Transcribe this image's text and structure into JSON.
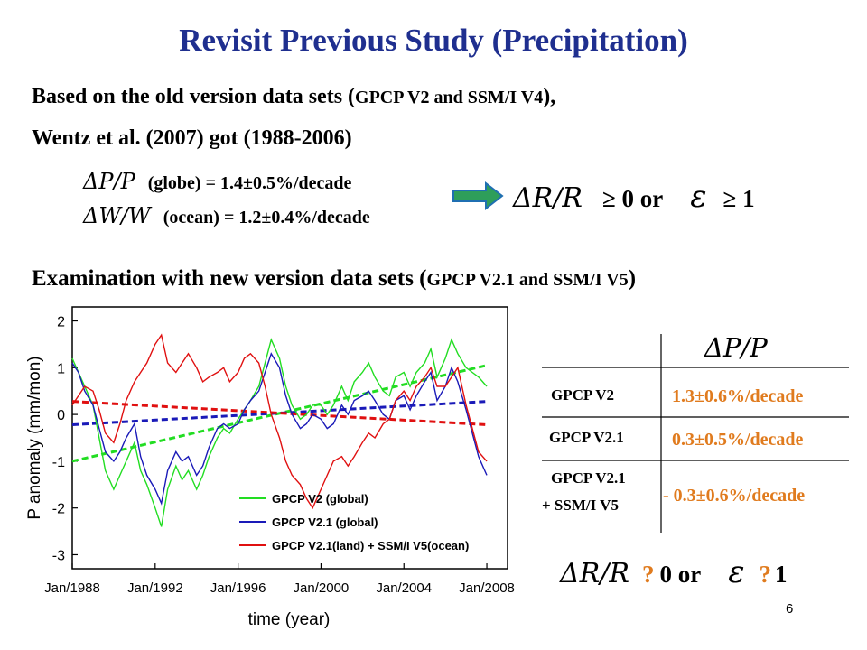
{
  "slide": {
    "title": "Revisit Previous Study (Precipitation)",
    "intro_prefix": "Based on the old version data sets (",
    "intro_datasets": "GPCP V2 and SSM/I V4",
    "intro_suffix": "),",
    "wentz_line": "Wentz et al. (2007) got (1988-2006)",
    "eq_p_lhs": "ΔP/P",
    "eq_p_rhs": "(globe) = 1.4±0.5%/decade",
    "eq_w_lhs": "ΔW/W",
    "eq_w_rhs": "(ocean) = 1.2±0.4%/decade",
    "result_lhs": "ΔR/R",
    "result_mid": "≥ 0   or",
    "result_eps": "ε",
    "result_end": "≥ 1",
    "exam_prefix": "Examination with new version data sets (",
    "exam_datasets": "GPCP V2.1 and SSM/I V5",
    "exam_suffix": ")",
    "page_number": "6"
  },
  "table": {
    "header": "ΔP/P",
    "rows": [
      {
        "name": "GPCP V2",
        "value": "1.3±0.6%/decade"
      },
      {
        "name": "GPCP V2.1",
        "value": "0.3±0.5%/decade"
      },
      {
        "name": "GPCP V2.1",
        "name2": "+ SSM/I V5",
        "value": "- 0.3±0.6%/decade"
      }
    ],
    "value_color": "#e07b1e"
  },
  "bottom_result": {
    "lhs": "ΔR/R",
    "q1": "?",
    "zero_or": "0   or",
    "eps": "ε",
    "q2": "?",
    "one": "1",
    "question_color": "#e07b1e"
  },
  "chart_data": {
    "type": "line",
    "xlabel": "time (year)",
    "ylabel": "P anomaly (mm/mon)",
    "x_ticks": [
      "Jan/1988",
      "Jan/1992",
      "Jan/1996",
      "Jan/2000",
      "Jan/2004",
      "Jan/2008"
    ],
    "y_ticks": [
      "2",
      "1",
      "0",
      "-1",
      "-2",
      "-3"
    ],
    "xlim": [
      1988,
      2009
    ],
    "ylim": [
      -3.3,
      2.3
    ],
    "series": [
      {
        "name": "GPCP V2 (global)",
        "color": "#22dd22",
        "x": [
          1988.0,
          1988.3,
          1988.6,
          1989.0,
          1989.3,
          1989.6,
          1990.0,
          1990.3,
          1990.6,
          1991.0,
          1991.3,
          1991.6,
          1992.0,
          1992.3,
          1992.6,
          1993.0,
          1993.3,
          1993.6,
          1994.0,
          1994.3,
          1994.6,
          1995.0,
          1995.3,
          1995.6,
          1996.0,
          1996.3,
          1996.6,
          1997.0,
          1997.3,
          1997.6,
          1998.0,
          1998.3,
          1998.6,
          1999.0,
          1999.3,
          1999.6,
          2000.0,
          2000.3,
          2000.6,
          2001.0,
          2001.3,
          2001.6,
          2002.0,
          2002.3,
          2002.6,
          2003.0,
          2003.3,
          2003.6,
          2004.0,
          2004.3,
          2004.6,
          2005.0,
          2005.3,
          2005.6,
          2006.0,
          2006.3,
          2006.6,
          2007.0,
          2007.3,
          2007.6,
          2008.0
        ],
        "y": [
          1.2,
          0.9,
          0.6,
          0.2,
          -0.5,
          -1.2,
          -1.6,
          -1.3,
          -1.0,
          -0.6,
          -1.2,
          -1.5,
          -2.0,
          -2.4,
          -1.6,
          -1.1,
          -1.4,
          -1.2,
          -1.6,
          -1.3,
          -0.9,
          -0.5,
          -0.3,
          -0.4,
          -0.1,
          0.1,
          0.3,
          0.6,
          1.1,
          1.6,
          1.2,
          0.6,
          0.2,
          -0.1,
          0.0,
          0.2,
          0.2,
          0.0,
          0.2,
          0.6,
          0.3,
          0.7,
          0.9,
          1.1,
          0.8,
          0.5,
          0.4,
          0.8,
          0.9,
          0.6,
          0.9,
          1.1,
          1.4,
          0.8,
          1.2,
          1.6,
          1.3,
          1.0,
          0.9,
          0.8,
          0.6
        ]
      },
      {
        "name": "GPCP V2.1 (global)",
        "color": "#1a1ab8",
        "x": [
          1988.0,
          1988.3,
          1988.6,
          1989.0,
          1989.3,
          1989.6,
          1990.0,
          1990.3,
          1990.6,
          1991.0,
          1991.3,
          1991.6,
          1992.0,
          1992.3,
          1992.6,
          1993.0,
          1993.3,
          1993.6,
          1994.0,
          1994.3,
          1994.6,
          1995.0,
          1995.3,
          1995.6,
          1996.0,
          1996.3,
          1996.6,
          1997.0,
          1997.3,
          1997.6,
          1998.0,
          1998.3,
          1998.6,
          1999.0,
          1999.3,
          1999.6,
          2000.0,
          2000.3,
          2000.6,
          2001.0,
          2001.3,
          2001.6,
          2002.0,
          2002.3,
          2002.6,
          2003.0,
          2003.3,
          2003.6,
          2004.0,
          2004.3,
          2004.6,
          2005.0,
          2005.3,
          2005.6,
          2006.0,
          2006.3,
          2006.6,
          2007.0,
          2007.3,
          2007.6,
          2008.0
        ],
        "y": [
          1.1,
          0.9,
          0.5,
          0.2,
          -0.3,
          -0.8,
          -1.0,
          -0.8,
          -0.5,
          -0.2,
          -0.9,
          -1.3,
          -1.6,
          -1.9,
          -1.2,
          -0.8,
          -1.0,
          -0.9,
          -1.3,
          -1.1,
          -0.7,
          -0.3,
          -0.2,
          -0.3,
          -0.2,
          0.1,
          0.3,
          0.5,
          0.9,
          1.3,
          1.0,
          0.4,
          0.0,
          -0.3,
          -0.2,
          0.0,
          -0.1,
          -0.3,
          -0.2,
          0.2,
          0.0,
          0.3,
          0.4,
          0.5,
          0.3,
          0.0,
          -0.1,
          0.3,
          0.4,
          0.1,
          0.4,
          0.7,
          0.9,
          0.3,
          0.6,
          1.0,
          0.7,
          0.1,
          -0.4,
          -0.9,
          -1.3
        ]
      },
      {
        "name": "GPCP V2.1(land) + SSM/I V5(ocean)",
        "color": "#e01010",
        "x": [
          1988.0,
          1988.3,
          1988.6,
          1989.0,
          1989.3,
          1989.6,
          1990.0,
          1990.3,
          1990.6,
          1991.0,
          1991.3,
          1991.6,
          1992.0,
          1992.3,
          1992.6,
          1993.0,
          1993.3,
          1993.6,
          1994.0,
          1994.3,
          1994.6,
          1995.0,
          1995.3,
          1995.6,
          1996.0,
          1996.3,
          1996.6,
          1997.0,
          1997.3,
          1997.6,
          1998.0,
          1998.3,
          1998.6,
          1999.0,
          1999.3,
          1999.6,
          2000.0,
          2000.3,
          2000.6,
          2001.0,
          2001.3,
          2001.6,
          2002.0,
          2002.3,
          2002.6,
          2003.0,
          2003.3,
          2003.6,
          2004.0,
          2004.3,
          2004.6,
          2005.0,
          2005.3,
          2005.6,
          2006.0,
          2006.3,
          2006.6,
          2007.0,
          2007.3,
          2007.6,
          2008.0
        ],
        "y": [
          0.2,
          0.4,
          0.6,
          0.5,
          0.1,
          -0.4,
          -0.6,
          -0.2,
          0.3,
          0.7,
          0.9,
          1.1,
          1.5,
          1.7,
          1.1,
          0.9,
          1.1,
          1.3,
          1.0,
          0.7,
          0.8,
          0.9,
          1.0,
          0.7,
          0.9,
          1.2,
          1.3,
          1.1,
          0.6,
          0.0,
          -0.5,
          -1.0,
          -1.3,
          -1.5,
          -1.8,
          -2.0,
          -1.6,
          -1.3,
          -1.0,
          -0.9,
          -1.1,
          -0.9,
          -0.6,
          -0.4,
          -0.5,
          -0.2,
          -0.1,
          0.3,
          0.5,
          0.3,
          0.6,
          0.8,
          1.0,
          0.6,
          0.6,
          0.8,
          1.0,
          0.2,
          -0.3,
          -0.8,
          -1.0
        ]
      }
    ],
    "trends": [
      {
        "color": "#22dd22",
        "x": [
          1988.0,
          2008.0
        ],
        "y": [
          -1.0,
          1.05
        ]
      },
      {
        "color": "#1a1ab8",
        "x": [
          1988.0,
          2008.0
        ],
        "y": [
          -0.22,
          0.28
        ]
      },
      {
        "color": "#e01010",
        "x": [
          1988.0,
          2008.0
        ],
        "y": [
          0.28,
          -0.22
        ]
      }
    ],
    "legend_position": "bottom-right"
  }
}
